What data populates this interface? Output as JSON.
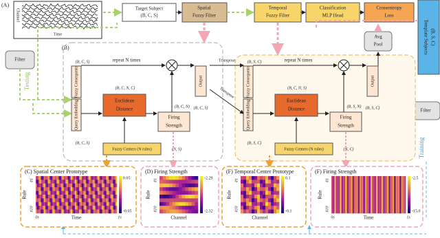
{
  "panel_labels": {
    "a": "(A)",
    "b": "(B)"
  },
  "eeg": {
    "y_label": "Channel",
    "x_label": "Time"
  },
  "nodes": {
    "target_subject": [
      "Target Subject",
      "(B, C, S)"
    ],
    "spatial_filter": [
      "Spatial",
      "Fuzzy Filter"
    ],
    "temporal_filter": [
      "Temporal",
      "Fuzzy Filter"
    ],
    "mlp_head": [
      "Classification",
      "MLP Head"
    ],
    "loss": [
      "Crossentropy",
      "Loss"
    ],
    "template_subjects": [
      "Template Subjects",
      "(B, S, C)"
    ],
    "filter_left": "Filter",
    "filter_right": "Filter",
    "avg_pool": [
      "Avg",
      "Pool"
    ]
  },
  "flow": {
    "testing": "Testing",
    "training": "Training",
    "transpose_top": "Transpose",
    "transpose_diag": "Transpose"
  },
  "spatial_block": {
    "in_shape": "(B, C, S)",
    "consequents": "Fuzzy Consequents",
    "query": "Query Embedding",
    "repeat": "repeat N times",
    "output": "Output",
    "out_shape": "(B, C, S)",
    "dist_shape": "(B, C, N, C)",
    "distance": [
      "Euclidean",
      "Distance"
    ],
    "firing": [
      "Firing",
      "Strength"
    ],
    "firing_shape": "(B, C, N)",
    "query_shape": "(B, C, S)",
    "centers": "Fuzzy Centers (N rules)",
    "centers_shape": "(N, S)"
  },
  "temporal_block": {
    "in_shape": "(B, S, C)",
    "consequents": "Fuzzy Consequents",
    "query": "Query Embedding",
    "repeat": "repeat N times",
    "output": "Output",
    "out_shape": "(B, S, C)",
    "dist_shape": "(B, C, N, S)",
    "distance": [
      "Euclidean",
      "Distance"
    ],
    "firing": [
      "Firing",
      "Strength"
    ],
    "firing_shape": "(B, S, N)",
    "query_shape": "(B, S, C)",
    "centers": "Fuzzy Centers (N rules)",
    "centers_shape": "(N, C)"
  },
  "heatmaps": [
    {
      "title": "(C) Spatial Center Prototype",
      "cb_max": "0.05",
      "cb_min": "-0.05",
      "y_label": "Rule",
      "y_top": "#1",
      "y_bottom": "#10",
      "x_start": "0s",
      "x_label": "Time",
      "x_end": "1s"
    },
    {
      "title": "(D) Firing Strength",
      "cb_max": "-2.29",
      "cb_min": "-2.32",
      "y_label": "Rule",
      "y_top": "#1",
      "y_bottom": "#10",
      "x_label": "Channel"
    },
    {
      "title": "(F) Temporal Center Prototype",
      "cb_max": "0.1",
      "cb_min": "-0.1",
      "y_label": "Rule",
      "y_top": "#1",
      "y_bottom": "#10",
      "x_label": "Channel"
    },
    {
      "title": "(F) Firing Strength",
      "cb_max": "-2.5",
      "cb_min": "-15.0",
      "y_label": "Rule",
      "y_top": "#1",
      "y_bottom": "#10",
      "x_start": "0s",
      "x_label": "Time",
      "x_end": "1s"
    }
  ]
}
